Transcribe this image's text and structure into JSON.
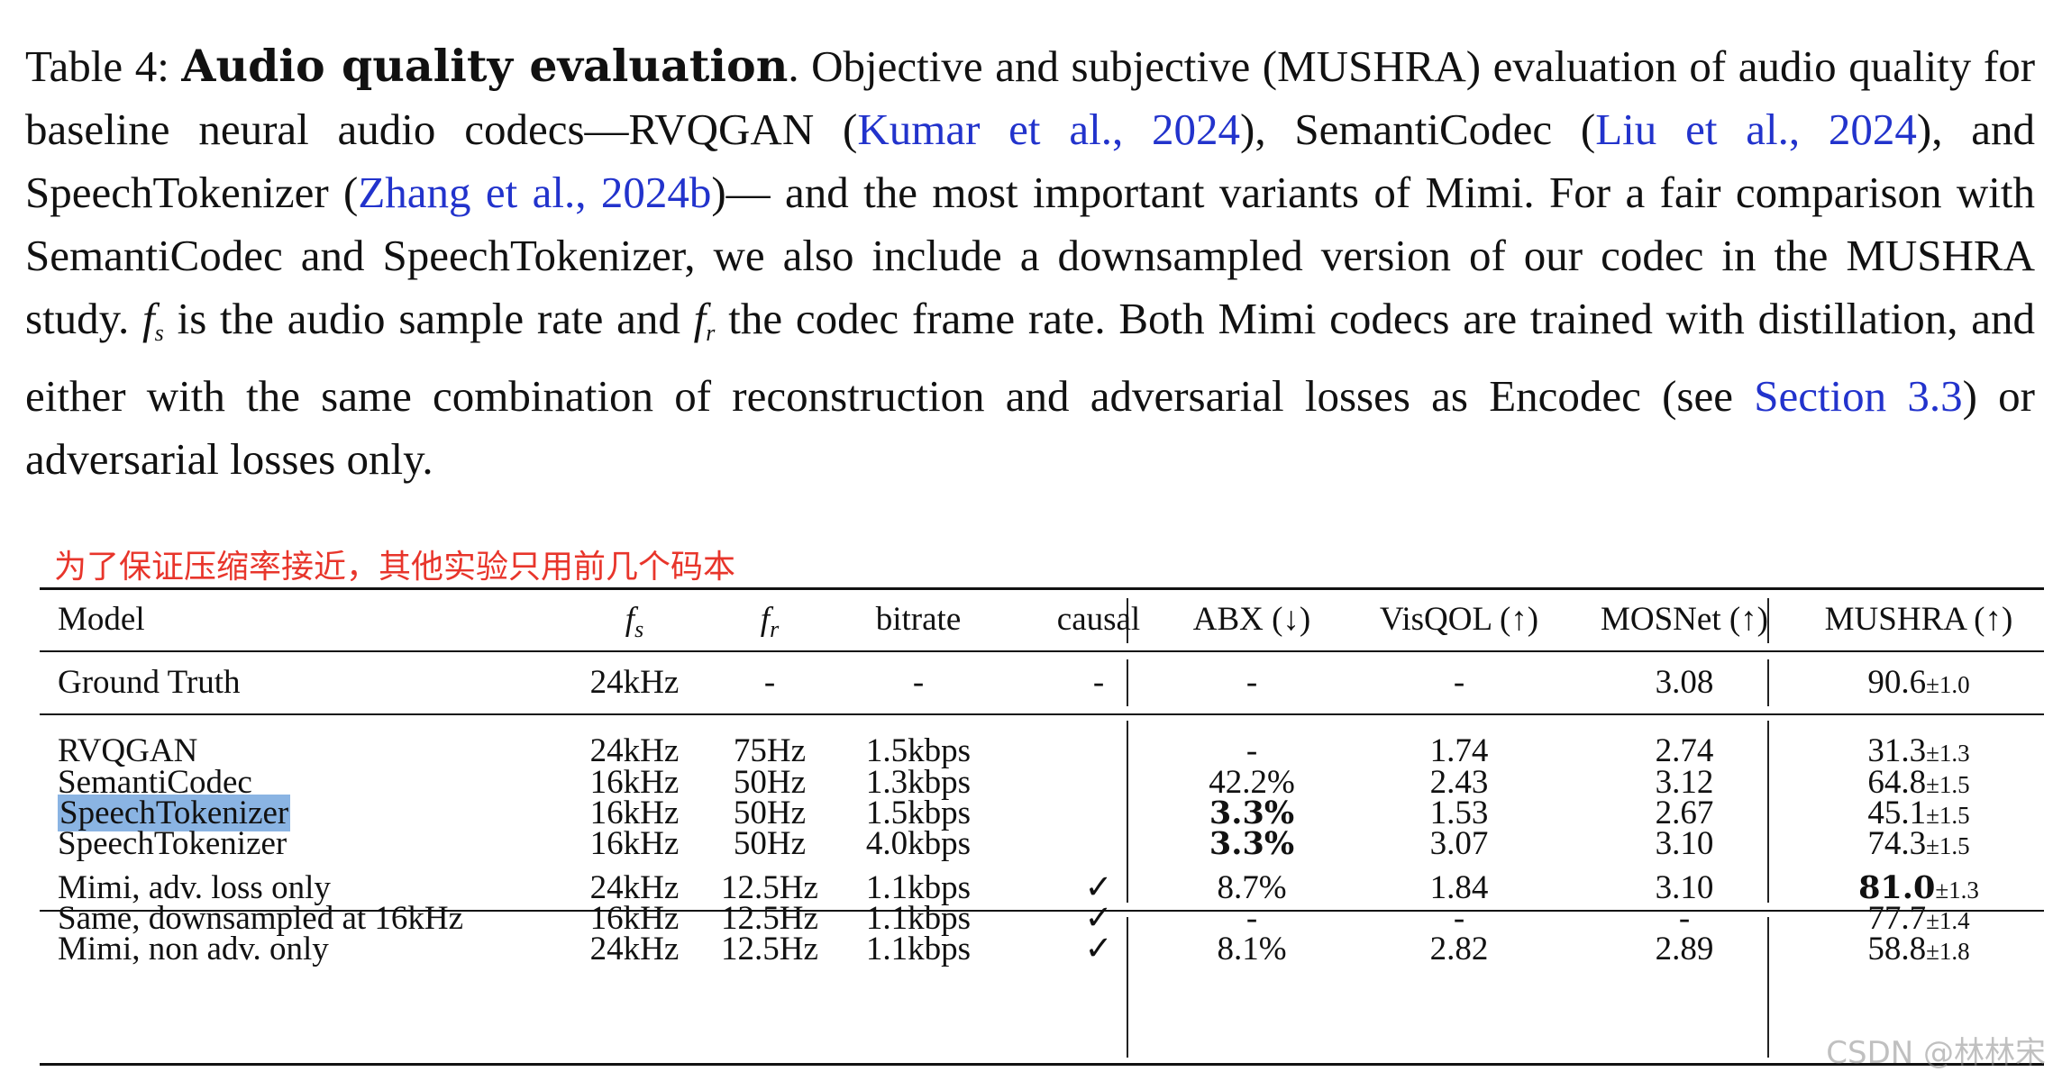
{
  "caption": {
    "label": "Table 4:",
    "title": "Audio quality evaluation",
    "t1": ". Objective and subjective (MUSHRA) evaluation of audio quality for baseline neural audio codecs—RVQGAN (",
    "cite1_author": "Kumar et al.",
    "cite1_year": "2024",
    "t2": "), SemantiCodec (",
    "cite2_author": "Liu et al.",
    "cite2_year": "2024",
    "t3": "), and SpeechTokenizer  (",
    "cite3_author": "Zhang et al.",
    "cite3_year": "2024b",
    "t4": ")— and the most important variants of Mimi.  For a fair comparison with SemantiCodec and SpeechTokenizer, we also include a downsampled version of our codec in the MUSHRA study. ",
    "fs_symbol": "f",
    "fs_sub": "s",
    "t5": " is the audio sample rate and ",
    "fr_symbol": "f",
    "fr_sub": "r",
    "t6": " the codec frame rate.  Both Mimi codecs are trained with distillation, and either with the same combination of reconstruction and adversarial losses as Encodec (see ",
    "section_ref": "Section 3.3",
    "t7": ") or adversarial losses only."
  },
  "annotation": "为了保证压缩率接近，其他实验只用前几个码本",
  "table": {
    "headers": {
      "model": "Model",
      "fs_symbol": "f",
      "fs_sub": "s",
      "fr_symbol": "f",
      "fr_sub": "r",
      "bitrate": "bitrate",
      "causal": "causal",
      "abx": "ABX (↓)",
      "visqol": "VisQOL (↑)",
      "mosnet": "MOSNet (↑)",
      "mushra": "MUSHRA (↑)"
    },
    "rows": [
      {
        "model": "Ground Truth",
        "fs": "24kHz",
        "fr": "-",
        "bitrate": "-",
        "causal": "-",
        "abx": "-",
        "visqol": "-",
        "mosnet": "3.08",
        "mushra": "90.6",
        "mushra_pm": "±1.0"
      },
      {
        "model": "RVQGAN",
        "fs": "24kHz",
        "fr": "75Hz",
        "bitrate": "1.5kbps",
        "causal": "",
        "abx": "-",
        "visqol": "1.74",
        "mosnet": "2.74",
        "mushra": "31.3",
        "mushra_pm": "±1.3"
      },
      {
        "model": "SemantiCodec",
        "fs": "16kHz",
        "fr": "50Hz",
        "bitrate": "1.3kbps",
        "causal": "",
        "abx": "42.2%",
        "visqol": "2.43",
        "mosnet": "3.12",
        "mushra": "64.8",
        "mushra_pm": "±1.5"
      },
      {
        "model": "SpeechTokenizer",
        "fs": "16kHz",
        "fr": "50Hz",
        "bitrate": "1.5kbps",
        "causal": "",
        "abx": "3.3%",
        "visqol": "1.53",
        "mosnet": "2.67",
        "mushra": "45.1",
        "mushra_pm": "±1.5"
      },
      {
        "model": "SpeechTokenizer",
        "fs": "16kHz",
        "fr": "50Hz",
        "bitrate": "4.0kbps",
        "causal": "",
        "abx": "3.3%",
        "visqol": "3.07",
        "mosnet": "3.10",
        "mushra": "74.3",
        "mushra_pm": "±1.5"
      },
      {
        "model": "Mimi, adv. loss only",
        "fs": "24kHz",
        "fr": "12.5Hz",
        "bitrate": "1.1kbps",
        "causal": "✓",
        "abx": "8.7%",
        "visqol": "1.84",
        "mosnet": "3.10",
        "mushra": "81.0",
        "mushra_pm": "±1.3"
      },
      {
        "model": "Same, downsampled at 16kHz",
        "fs": "16kHz",
        "fr": "12.5Hz",
        "bitrate": "1.1kbps",
        "causal": "✓",
        "abx": "-",
        "visqol": "-",
        "mosnet": "-",
        "mushra": "77.7",
        "mushra_pm": "±1.4"
      },
      {
        "model": "Mimi, non adv. only",
        "fs": "24kHz",
        "fr": "12.5Hz",
        "bitrate": "1.1kbps",
        "causal": "✓",
        "abx": "8.1%",
        "visqol": "2.82",
        "mosnet": "2.89",
        "mushra": "58.8",
        "mushra_pm": "±1.8"
      }
    ]
  },
  "watermark": "CSDN @林林宋"
}
